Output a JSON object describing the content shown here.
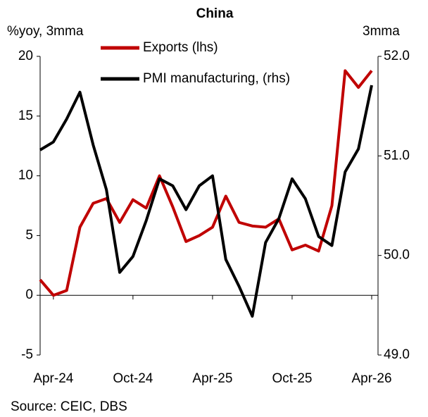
{
  "chart_data": {
    "type": "line",
    "title": "China",
    "y_label": "%yoy, 3mma",
    "y2_label": "3mma",
    "source": "Source: CEIC, DBS",
    "categories": [
      null,
      "Apr-24",
      null,
      null,
      null,
      null,
      null,
      "Oct-24",
      null,
      null,
      null,
      null,
      null,
      "Apr-25",
      null,
      null,
      null,
      null,
      null,
      "Oct-25",
      null,
      null,
      null,
      null,
      null,
      "Apr-26"
    ],
    "series": [
      {
        "name": "Exports (lhs)",
        "color": "#c00000",
        "values": [
          1.3,
          0,
          0.4,
          5.7,
          7.7,
          8.1,
          6.1,
          8.0,
          7.3,
          10.0,
          7.4,
          4.5,
          5.0,
          5.7,
          8.3,
          6.1,
          5.8,
          5.7,
          6.4,
          3.8,
          4.2,
          3.7,
          7.5,
          18.8,
          17.4,
          18.8
        ]
      },
      {
        "name": "PMI manufacturing, (rhs)",
        "color": "#000000",
        "axis": "y2",
        "values": [
          51.06,
          51.14,
          51.37,
          51.64,
          51.11,
          50.66,
          49.83,
          49.99,
          50.35,
          50.77,
          50.7,
          50.46,
          50.7,
          50.8,
          49.96,
          49.69,
          49.39,
          50.13,
          50.37,
          50.77,
          50.57,
          50.19,
          50.1,
          50.84,
          51.07,
          51.71
        ]
      }
    ],
    "ylim": [
      -5,
      20
    ],
    "yticks": [
      -5,
      0,
      5,
      10,
      15,
      20
    ],
    "y2lim": [
      49,
      52
    ],
    "y2ticks": [
      {
        "value": 49,
        "label": "49.0"
      },
      {
        "value": 50,
        "label": "50.0"
      },
      {
        "value": 51,
        "label": "51.0"
      },
      {
        "value": 52,
        "label": "52.0"
      }
    ]
  }
}
